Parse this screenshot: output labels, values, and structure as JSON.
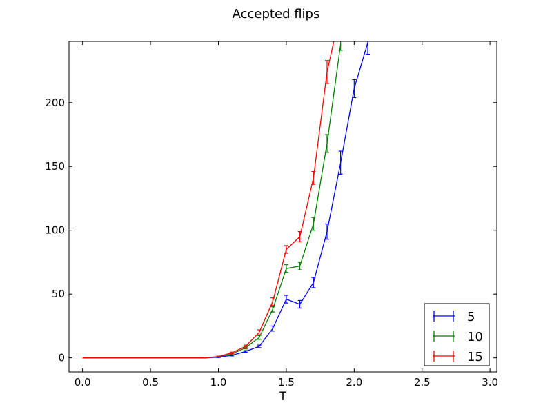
{
  "chart_data": {
    "type": "line",
    "title": "Accepted flips",
    "xlabel": "T",
    "ylabel": "",
    "xlim": [
      -0.1,
      3.05
    ],
    "ylim": [
      -11,
      248
    ],
    "xticks": [
      "0.0",
      "0.5",
      "1.0",
      "1.5",
      "2.0",
      "2.5",
      "3.0"
    ],
    "yticks": [
      "0",
      "50",
      "100",
      "150",
      "200"
    ],
    "grid": false,
    "legend": "lower-right",
    "error_bars": true,
    "series": [
      {
        "name": "5",
        "color": "#0000ff",
        "x": [
          0.0,
          0.1,
          0.2,
          0.3,
          0.4,
          0.5,
          0.6,
          0.7,
          0.8,
          0.9,
          1.0,
          1.1,
          1.2,
          1.3,
          1.4,
          1.5,
          1.6,
          1.7,
          1.8,
          1.9,
          2.0,
          2.1
        ],
        "y": [
          0,
          0,
          0,
          0,
          0,
          0,
          0,
          0,
          0,
          0,
          0.5,
          2,
          5,
          9,
          23,
          46,
          42,
          59,
          99,
          153,
          211,
          247
        ],
        "err": [
          0,
          0,
          0,
          0,
          0,
          0,
          0,
          0,
          0,
          0,
          0.3,
          0.5,
          0.7,
          1,
          2,
          3,
          3,
          4,
          6,
          9,
          7,
          9
        ]
      },
      {
        "name": "10",
        "color": "#008000",
        "x": [
          0.0,
          0.1,
          0.2,
          0.3,
          0.4,
          0.5,
          0.6,
          0.7,
          0.8,
          0.9,
          1.0,
          1.1,
          1.2,
          1.3,
          1.4,
          1.5,
          1.6,
          1.7,
          1.8,
          1.9
        ],
        "y": [
          0,
          0,
          0,
          0,
          0,
          0,
          0,
          0,
          0,
          0,
          1,
          3,
          8,
          16,
          38,
          70,
          72,
          105,
          168,
          246
        ],
        "err": [
          0,
          0,
          0,
          0,
          0,
          0,
          0,
          0,
          0,
          0,
          0.3,
          0.5,
          1,
          1.5,
          2,
          3,
          3,
          5,
          7,
          5
        ]
      },
      {
        "name": "15",
        "color": "#ff0000",
        "x": [
          0.0,
          0.1,
          0.2,
          0.3,
          0.4,
          0.5,
          0.6,
          0.7,
          0.8,
          0.9,
          1.0,
          1.1,
          1.2,
          1.3,
          1.4,
          1.5,
          1.6,
          1.7,
          1.8,
          1.85
        ],
        "y": [
          0,
          0,
          0,
          0,
          0,
          0,
          0,
          0,
          0,
          0,
          1,
          4,
          9,
          20,
          44,
          85,
          95,
          141,
          224,
          248
        ],
        "err": [
          0,
          0,
          0,
          0,
          0,
          0,
          0,
          0,
          0,
          0,
          0.3,
          0.5,
          1,
          2,
          3,
          3,
          4,
          5,
          9,
          0
        ]
      }
    ]
  }
}
